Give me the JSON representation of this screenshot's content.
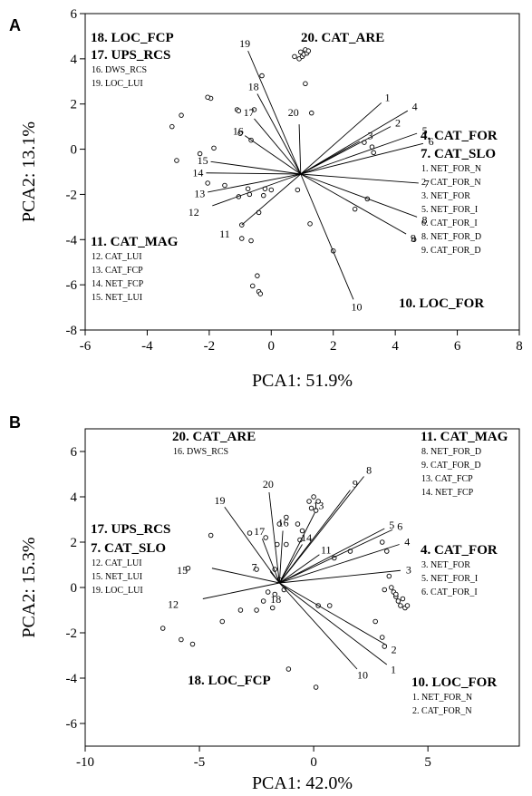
{
  "chart_data": [
    {
      "type": "scatter",
      "panel_label": "A",
      "xlabel": "PCA1: 51.9%",
      "ylabel": "PCA2: 13.1%",
      "xlim": [
        -6,
        8
      ],
      "ylim": [
        -8,
        6
      ],
      "xticks": [
        -6,
        -4,
        -2,
        0,
        2,
        4,
        6,
        8
      ],
      "yticks": [
        -8,
        -6,
        -4,
        -2,
        0,
        2,
        4,
        6
      ],
      "origin": [
        0.95,
        -1.1
      ],
      "points": [
        [
          0.75,
          4.1
        ],
        [
          0.9,
          4.0
        ],
        [
          1.0,
          4.1
        ],
        [
          1.05,
          4.2
        ],
        [
          1.15,
          4.25
        ],
        [
          1.1,
          4.4
        ],
        [
          1.2,
          4.35
        ],
        [
          0.95,
          4.3
        ],
        [
          -1.95,
          2.25
        ],
        [
          -2.05,
          2.3
        ],
        [
          -2.9,
          1.5
        ],
        [
          -3.2,
          1.0
        ],
        [
          -1.1,
          1.75
        ],
        [
          -1.05,
          1.7
        ],
        [
          -0.55,
          1.75
        ],
        [
          -0.3,
          3.25
        ],
        [
          1.1,
          2.9
        ],
        [
          1.3,
          1.6
        ],
        [
          -1.0,
          0.7
        ],
        [
          -0.65,
          0.4
        ],
        [
          -1.85,
          0.05
        ],
        [
          -2.3,
          -0.2
        ],
        [
          -3.05,
          -0.5
        ],
        [
          -2.05,
          -1.5
        ],
        [
          -0.75,
          -1.75
        ],
        [
          -0.7,
          -2.0
        ],
        [
          -0.2,
          -1.75
        ],
        [
          -0.25,
          -2.05
        ],
        [
          -1.05,
          -2.1
        ],
        [
          -1.5,
          -1.6
        ],
        [
          0.0,
          -1.8
        ],
        [
          0.85,
          -1.8
        ],
        [
          -0.4,
          -2.8
        ],
        [
          -0.95,
          -3.35
        ],
        [
          -0.95,
          -3.95
        ],
        [
          -0.65,
          -4.05
        ],
        [
          1.25,
          -3.3
        ],
        [
          2.0,
          -4.5
        ],
        [
          2.7,
          -2.65
        ],
        [
          3.1,
          -2.2
        ],
        [
          3.0,
          0.3
        ],
        [
          3.25,
          0.1
        ],
        [
          3.3,
          -0.15
        ],
        [
          4.6,
          -4.0
        ],
        [
          -0.45,
          -5.6
        ],
        [
          -0.6,
          -6.05
        ],
        [
          -0.4,
          -6.3
        ],
        [
          -0.35,
          -6.4
        ]
      ],
      "vectors": [
        {
          "label": "1",
          "tip": [
            3.55,
            2.05
          ]
        },
        {
          "label": "2",
          "tip": [
            3.85,
            1.0
          ]
        },
        {
          "label": "3",
          "tip": [
            2.85,
            0.35
          ]
        },
        {
          "label": "4",
          "tip": [
            4.4,
            1.7
          ]
        },
        {
          "label": "5",
          "tip": [
            4.7,
            0.7
          ]
        },
        {
          "label": "6",
          "tip": [
            4.9,
            0.25
          ]
        },
        {
          "label": "7",
          "tip": [
            4.75,
            -1.5
          ]
        },
        {
          "label": "8",
          "tip": [
            4.7,
            -3.0
          ]
        },
        {
          "label": "9",
          "tip": [
            4.35,
            -3.75
          ]
        },
        {
          "label": "10",
          "tip": [
            2.65,
            -6.65
          ]
        },
        {
          "label": "11",
          "tip": [
            -0.95,
            -3.35
          ]
        },
        {
          "label": "12",
          "tip": [
            -1.9,
            -2.5
          ]
        },
        {
          "label": "13",
          "tip": [
            -2.05,
            -1.9
          ]
        },
        {
          "label": "14",
          "tip": [
            -2.1,
            -1.05
          ]
        },
        {
          "label": "15",
          "tip": [
            -1.95,
            -0.55
          ]
        },
        {
          "label": "16",
          "tip": [
            -0.85,
            0.6
          ]
        },
        {
          "label": "17",
          "tip": [
            -0.55,
            1.35
          ]
        },
        {
          "label": "18",
          "tip": [
            -0.45,
            2.45
          ]
        },
        {
          "label": "19",
          "tip": [
            -0.75,
            4.35
          ]
        },
        {
          "label": "20",
          "tip": [
            0.9,
            1.1
          ]
        }
      ],
      "groups": [
        {
          "title": "18. LOC_FCP",
          "items": []
        },
        {
          "title": "17. UPS_RCS",
          "items": [
            "16. DWS_RCS",
            "19. LOC_LUI"
          ]
        },
        {
          "title": "20. CAT_ARE",
          "items": []
        },
        {
          "title": "4. CAT_FOR",
          "items": []
        },
        {
          "title": "7. CAT_SLO",
          "items": [
            "1. NET_FOR_N",
            "2. CAT_FOR_N",
            "3. NET_FOR",
            "5. NET_FOR_I",
            "6. CAT_FOR_I",
            "8. NET_FOR_D",
            "9. CAT_FOR_D"
          ]
        },
        {
          "title": "11. CAT_MAG",
          "items": [
            "12. CAT_LUI",
            "13. CAT_FCP",
            "14. NET_FCP",
            "15. NET_LUI"
          ]
        },
        {
          "title": "10. LOC_FOR",
          "items": []
        }
      ]
    },
    {
      "type": "scatter",
      "panel_label": "B",
      "xlabel": "PCA1: 42.0%",
      "ylabel": "PCA2: 15.3%",
      "xlim": [
        -10,
        9
      ],
      "ylim": [
        -7,
        7
      ],
      "xticks": [
        -10,
        -5,
        0,
        5
      ],
      "yticks": [
        -6,
        -4,
        -2,
        0,
        2,
        4,
        6
      ],
      "origin": [
        -1.5,
        0.2
      ],
      "points": [
        [
          0.0,
          4.0
        ],
        [
          -0.2,
          3.8
        ],
        [
          0.2,
          3.8
        ],
        [
          0.1,
          3.4
        ],
        [
          -0.1,
          3.5
        ],
        [
          -1.2,
          3.1
        ],
        [
          -1.5,
          2.8
        ],
        [
          -0.7,
          2.8
        ],
        [
          -0.5,
          2.5
        ],
        [
          -0.6,
          2.1
        ],
        [
          -1.2,
          1.9
        ],
        [
          -1.6,
          1.9
        ],
        [
          -2.1,
          2.2
        ],
        [
          -2.8,
          2.4
        ],
        [
          -4.5,
          2.3
        ],
        [
          -5.5,
          0.85
        ],
        [
          -2.5,
          0.8
        ],
        [
          -1.7,
          0.8
        ],
        [
          -1.5,
          0.35
        ],
        [
          -1.3,
          -0.1
        ],
        [
          -1.7,
          -0.3
        ],
        [
          -2.0,
          -0.2
        ],
        [
          -2.2,
          -0.6
        ],
        [
          -1.8,
          -0.9
        ],
        [
          -2.5,
          -1.0
        ],
        [
          -3.2,
          -1.0
        ],
        [
          -4.0,
          -1.5
        ],
        [
          -5.3,
          -2.5
        ],
        [
          -5.8,
          -2.3
        ],
        [
          -6.6,
          -1.8
        ],
        [
          0.9,
          1.3
        ],
        [
          1.6,
          1.6
        ],
        [
          3.0,
          2.0
        ],
        [
          3.2,
          1.6
        ],
        [
          3.3,
          0.5
        ],
        [
          3.4,
          0.0
        ],
        [
          3.5,
          -0.2
        ],
        [
          3.6,
          -0.4
        ],
        [
          3.7,
          -0.6
        ],
        [
          3.8,
          -0.8
        ],
        [
          4.0,
          -0.9
        ],
        [
          4.1,
          -0.8
        ],
        [
          3.6,
          -0.3
        ],
        [
          3.9,
          -0.5
        ],
        [
          3.1,
          -0.1
        ],
        [
          0.2,
          -0.8
        ],
        [
          0.7,
          -0.8
        ],
        [
          2.7,
          -1.5
        ],
        [
          3.0,
          -2.2
        ],
        [
          3.1,
          -2.6
        ],
        [
          -1.1,
          -3.6
        ],
        [
          0.1,
          -4.4
        ]
      ],
      "vectors": [
        {
          "label": "1",
          "tip": [
            3.2,
            -3.4
          ]
        },
        {
          "label": "2",
          "tip": [
            3.2,
            -2.55
          ]
        },
        {
          "label": "3",
          "tip": [
            3.8,
            0.75
          ]
        },
        {
          "label": "4",
          "tip": [
            3.75,
            1.9
          ]
        },
        {
          "label": "5",
          "tip": [
            3.1,
            2.6
          ]
        },
        {
          "label": "6",
          "tip": [
            3.45,
            2.55
          ]
        },
        {
          "label": "7",
          "tip": [
            -1.9,
            0.7
          ]
        },
        {
          "label": "8",
          "tip": [
            2.2,
            4.9
          ]
        },
        {
          "label": "9",
          "tip": [
            1.6,
            4.3
          ]
        },
        {
          "label": "10",
          "tip": [
            1.9,
            -3.6
          ]
        },
        {
          "label": "11",
          "tip": [
            0.25,
            1.45
          ]
        },
        {
          "label": "12",
          "tip": [
            -4.85,
            -0.5
          ]
        },
        {
          "label": "13",
          "tip": [
            0.05,
            3.3
          ]
        },
        {
          "label": "14",
          "tip": [
            -0.5,
            1.9
          ]
        },
        {
          "label": "15",
          "tip": [
            -4.45,
            0.85
          ]
        },
        {
          "label": "16",
          "tip": [
            -1.35,
            2.5
          ]
        },
        {
          "label": "17",
          "tip": [
            -2.25,
            2.15
          ]
        },
        {
          "label": "18",
          "tip": [
            -1.5,
            0.2
          ]
        },
        {
          "label": "19",
          "tip": [
            -3.9,
            3.55
          ]
        },
        {
          "label": "20",
          "tip": [
            -1.95,
            4.2
          ]
        }
      ],
      "groups": [
        {
          "title": "20. CAT_ARE",
          "items": [
            "16. DWS_RCS"
          ]
        },
        {
          "title": "11. CAT_MAG",
          "items": [
            "8. NET_FOR_D",
            "9. CAT_FOR_D",
            "13. CAT_FCP",
            "14. NET_FCP"
          ]
        },
        {
          "title": "17. UPS_RCS",
          "items": []
        },
        {
          "title": "7. CAT_SLO",
          "items": [
            "12. CAT_LUI",
            "15. NET_LUI",
            "19. LOC_LUI"
          ]
        },
        {
          "title": "4. CAT_FOR",
          "items": [
            "3. NET_FOR",
            "5. NET_FOR_I",
            "6. CAT_FOR_I"
          ]
        },
        {
          "title": "18. LOC_FCP",
          "items": []
        },
        {
          "title": "10. LOC_FOR",
          "items": [
            "1. NET_FOR_N",
            "2. CAT_FOR_N"
          ]
        }
      ]
    }
  ]
}
